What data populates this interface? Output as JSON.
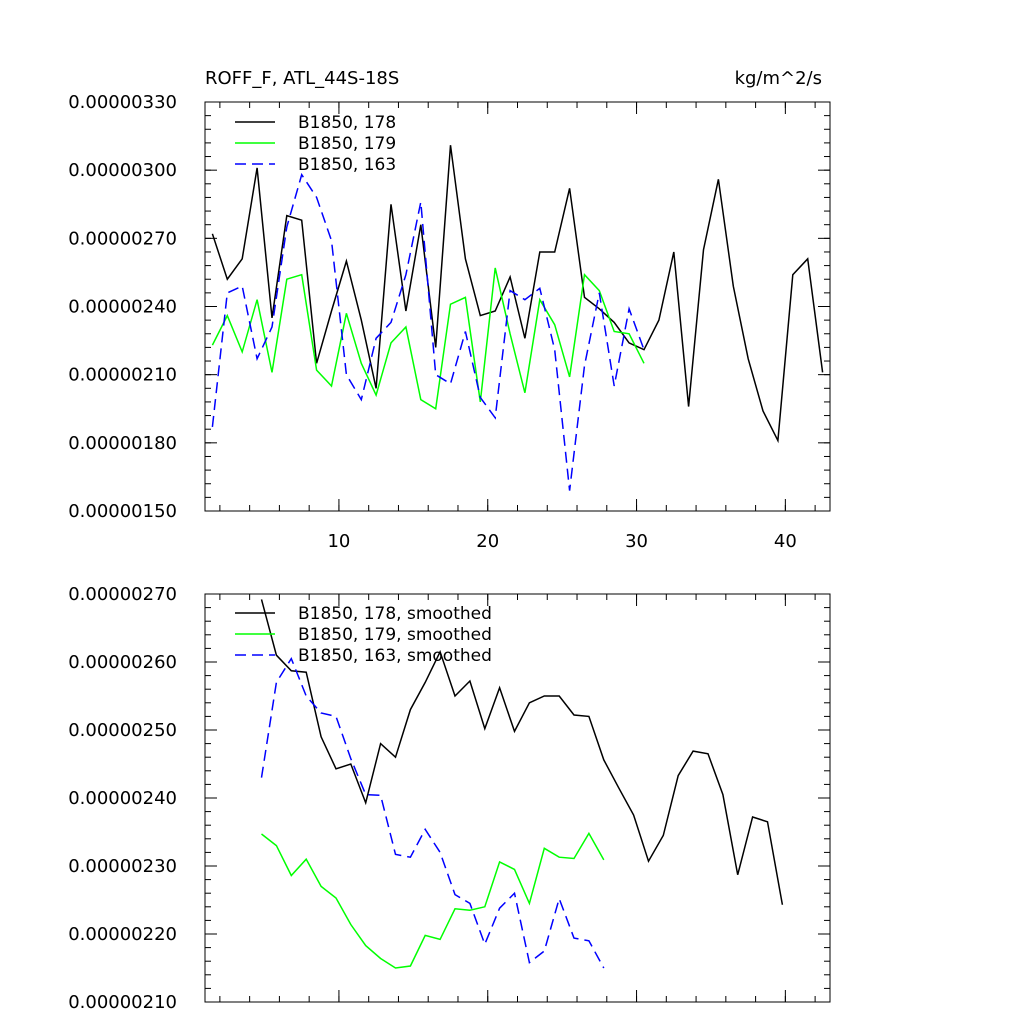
{
  "chart_data": [
    {
      "type": "line",
      "title": "ROFF_F, ATL_44S-18S",
      "units": "kg/m^2/s",
      "xlim": [
        1,
        43
      ],
      "ylim": [
        1.5e-06,
        3.3e-06
      ],
      "yticks": [
        "0.00000330",
        "0.00000300",
        "0.00000270",
        "0.00000240",
        "0.00000210",
        "0.00000180",
        "0.00000150"
      ],
      "yticks_values": [
        3.3e-06,
        3e-06,
        2.7e-06,
        2.4e-06,
        2.1e-06,
        1.8e-06,
        1.5e-06
      ],
      "xticks": [
        "10",
        "20",
        "30",
        "40"
      ],
      "xticks_values": [
        10,
        20,
        30,
        40
      ],
      "legend_position": "top-left",
      "series": [
        {
          "name": "B1850, 178",
          "color": "#000000",
          "dash": "solid",
          "x": [
            1.5,
            2.5,
            3.5,
            4.5,
            5.5,
            6.5,
            7.5,
            8.5,
            9.5,
            10.5,
            11.5,
            12.5,
            13.5,
            14.5,
            15.5,
            16.5,
            17.5,
            18.5,
            19.5,
            20.5,
            21.5,
            22.5,
            23.5,
            24.5,
            25.5,
            26.5,
            27.5,
            28.5,
            29.5,
            30.5,
            31.5,
            32.5,
            33.5,
            34.5,
            35.5,
            36.5,
            37.5,
            38.5,
            39.5,
            40.5,
            41.5,
            42.5
          ],
          "values": [
            2.72e-06,
            2.52e-06,
            2.61e-06,
            3.01e-06,
            2.35e-06,
            2.8e-06,
            2.78e-06,
            2.15e-06,
            2.38e-06,
            2.6e-06,
            2.34e-06,
            2.04e-06,
            2.85e-06,
            2.38e-06,
            2.76e-06,
            2.22e-06,
            3.11e-06,
            2.61e-06,
            2.36e-06,
            2.38e-06,
            2.53e-06,
            2.26e-06,
            2.64e-06,
            2.64e-06,
            2.92e-06,
            2.44e-06,
            2.39e-06,
            2.33e-06,
            2.24e-06,
            2.21e-06,
            2.34e-06,
            2.64e-06,
            1.96e-06,
            2.65e-06,
            2.96e-06,
            2.49e-06,
            2.17e-06,
            1.94e-06,
            1.81e-06,
            2.54e-06,
            2.61e-06,
            2.11e-06
          ]
        },
        {
          "name": "B1850, 179",
          "color": "#00ff00",
          "dash": "solid",
          "x": [
            1.5,
            2.5,
            3.5,
            4.5,
            5.5,
            6.5,
            7.5,
            8.5,
            9.5,
            10.5,
            11.5,
            12.5,
            13.5,
            14.5,
            15.5,
            16.5,
            17.5,
            18.5,
            19.5,
            20.5,
            21.5,
            22.5,
            23.5,
            24.5,
            25.5,
            26.5,
            27.5,
            28.5,
            29.5,
            30.5
          ],
          "values": [
            2.23e-06,
            2.36e-06,
            2.2e-06,
            2.43e-06,
            2.11e-06,
            2.52e-06,
            2.54e-06,
            2.12e-06,
            2.05e-06,
            2.37e-06,
            2.15e-06,
            2.01e-06,
            2.24e-06,
            2.31e-06,
            1.99e-06,
            1.95e-06,
            2.41e-06,
            2.44e-06,
            1.98e-06,
            2.57e-06,
            2.28e-06,
            2.02e-06,
            2.43e-06,
            2.32e-06,
            2.09e-06,
            2.54e-06,
            2.47e-06,
            2.29e-06,
            2.28e-06,
            2.15e-06
          ]
        },
        {
          "name": "B1850, 163",
          "color": "#0000ff",
          "dash": "dashed",
          "x": [
            1.5,
            2.5,
            3.5,
            4.5,
            5.5,
            6.5,
            7.5,
            8.5,
            9.5,
            10.5,
            11.5,
            12.5,
            13.5,
            14.5,
            15.5,
            16.5,
            17.5,
            18.5,
            19.5,
            20.5,
            21.5,
            22.5,
            23.5,
            24.5,
            25.5,
            26.5,
            27.5,
            28.5,
            29.5,
            30.5
          ],
          "values": [
            1.87e-06,
            2.46e-06,
            2.49e-06,
            2.17e-06,
            2.31e-06,
            2.75e-06,
            2.98e-06,
            2.88e-06,
            2.69e-06,
            2.1e-06,
            1.99e-06,
            2.26e-06,
            2.33e-06,
            2.54e-06,
            2.86e-06,
            2.1e-06,
            2.06e-06,
            2.29e-06,
            2e-06,
            1.91e-06,
            2.47e-06,
            2.43e-06,
            2.48e-06,
            2.21e-06,
            1.59e-06,
            2.14e-06,
            2.46e-06,
            2.05e-06,
            2.39e-06,
            2.21e-06
          ]
        }
      ]
    },
    {
      "type": "line",
      "title": "",
      "xlim": [
        1,
        43
      ],
      "ylim": [
        2.1e-06,
        2.7e-06
      ],
      "yticks": [
        "0.00000270",
        "0.00000260",
        "0.00000250",
        "0.00000240",
        "0.00000230",
        "0.00000220",
        "0.00000210"
      ],
      "yticks_values": [
        2.7e-06,
        2.6e-06,
        2.5e-06,
        2.4e-06,
        2.3e-06,
        2.2e-06,
        2.1e-06
      ],
      "xticks_values": [
        10,
        20,
        30,
        40
      ],
      "legend_position": "top-left",
      "series": [
        {
          "name": "B1850, 178, smoothed",
          "color": "#000000",
          "dash": "solid",
          "x": [
            4.8,
            5.8,
            6.8,
            7.8,
            8.8,
            9.8,
            10.8,
            11.8,
            12.8,
            13.8,
            14.8,
            15.8,
            16.8,
            17.8,
            18.8,
            19.8,
            20.8,
            21.8,
            22.8,
            23.8,
            24.8,
            25.8,
            26.8,
            27.8,
            28.8,
            29.8,
            30.8,
            31.8,
            32.8,
            33.8,
            34.8,
            35.8,
            36.8,
            37.8,
            38.8,
            39.8
          ],
          "values": [
            2.692e-06,
            2.61e-06,
            2.587e-06,
            2.585e-06,
            2.49e-06,
            2.443e-06,
            2.45e-06,
            2.393e-06,
            2.48e-06,
            2.46e-06,
            2.53e-06,
            2.57e-06,
            2.615e-06,
            2.55e-06,
            2.572e-06,
            2.502e-06,
            2.562e-06,
            2.498e-06,
            2.54e-06,
            2.55e-06,
            2.55e-06,
            2.522e-06,
            2.52e-06,
            2.456e-06,
            2.415e-06,
            2.375e-06,
            2.307e-06,
            2.345e-06,
            2.433e-06,
            2.469e-06,
            2.465e-06,
            2.405e-06,
            2.287e-06,
            2.372e-06,
            2.365e-06,
            2.243e-06
          ]
        },
        {
          "name": "B1850, 179, smoothed",
          "color": "#00ff00",
          "dash": "solid",
          "x": [
            4.8,
            5.8,
            6.8,
            7.8,
            8.8,
            9.8,
            10.8,
            11.8,
            12.8,
            13.8,
            14.8,
            15.8,
            16.8,
            17.8,
            18.8,
            19.8,
            20.8,
            21.8,
            22.8,
            23.8,
            24.8,
            25.8,
            26.8,
            27.8
          ],
          "values": [
            2.347e-06,
            2.33e-06,
            2.286e-06,
            2.31e-06,
            2.27e-06,
            2.253e-06,
            2.214e-06,
            2.183e-06,
            2.164e-06,
            2.15e-06,
            2.153e-06,
            2.198e-06,
            2.192e-06,
            2.237e-06,
            2.235e-06,
            2.24e-06,
            2.306e-06,
            2.295e-06,
            2.245e-06,
            2.326e-06,
            2.313e-06,
            2.311e-06,
            2.348e-06,
            2.309e-06
          ]
        },
        {
          "name": "B1850, 163, smoothed",
          "color": "#0000ff",
          "dash": "dashed",
          "x": [
            4.8,
            5.8,
            6.8,
            7.8,
            8.8,
            9.8,
            10.8,
            11.8,
            12.8,
            13.8,
            14.8,
            15.8,
            16.8,
            17.8,
            18.8,
            19.8,
            20.8,
            21.8,
            22.8,
            23.8,
            24.8,
            25.8,
            26.8,
            27.8
          ],
          "values": [
            2.43e-06,
            2.57e-06,
            2.605e-06,
            2.55e-06,
            2.525e-06,
            2.52e-06,
            2.458e-06,
            2.405e-06,
            2.404e-06,
            2.317e-06,
            2.313e-06,
            2.354e-06,
            2.32e-06,
            2.258e-06,
            2.245e-06,
            2.185e-06,
            2.238e-06,
            2.26e-06,
            2.158e-06,
            2.175e-06,
            2.252e-06,
            2.194e-06,
            2.19e-06,
            2.15e-06
          ]
        }
      ]
    }
  ]
}
